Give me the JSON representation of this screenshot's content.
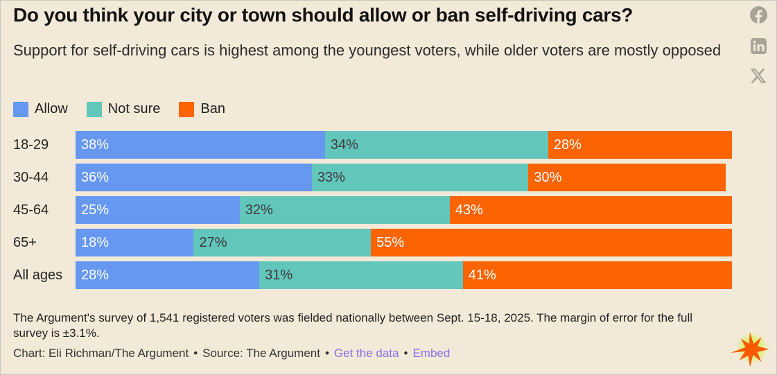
{
  "title": "Do you think your city or town should allow or ban self-driving cars?",
  "subtitle": "Support for self-driving cars is highest among the youngest voters, while older voters are mostly opposed",
  "legend": [
    "Allow",
    "Not sure",
    "Ban"
  ],
  "chart_data": {
    "type": "bar",
    "orientation": "horizontal",
    "stacked": true,
    "title": "Do you think your city or town should allow or ban self-driving cars?",
    "categories": [
      "18-29",
      "30-44",
      "45-64",
      "65+",
      "All ages"
    ],
    "series": [
      {
        "name": "Allow",
        "values": [
          38,
          36,
          25,
          18,
          28
        ]
      },
      {
        "name": "Not sure",
        "values": [
          34,
          33,
          32,
          27,
          31
        ]
      },
      {
        "name": "Ban",
        "values": [
          28,
          30,
          43,
          55,
          41
        ]
      }
    ],
    "value_suffix": "%",
    "xlim": [
      0,
      100
    ],
    "legend_position": "top",
    "value_labels": "inside-start"
  },
  "colors": {
    "background": "#f2e9d8",
    "series": [
      "#6698f2",
      "#63c6bb",
      "#fb6400"
    ],
    "series_label": [
      "#ffffff",
      "#3c3c3c",
      "#ffffff"
    ],
    "link": "#8a6de9",
    "social_icon": "#a9a296",
    "starburst": "#f85a00",
    "starburst_glow": "#d4ef45"
  },
  "footer": {
    "note": "The Argument's survey of 1,541 registered voters was fielded nationally between Sept. 15-18, 2025. The margin of error for the full survey is ±3.1%.",
    "credit": "Chart: Eli Richman/The Argument",
    "source": "Source: The Argument",
    "separator": "•",
    "links": [
      {
        "label": "Get the data"
      },
      {
        "label": "Embed"
      }
    ]
  }
}
